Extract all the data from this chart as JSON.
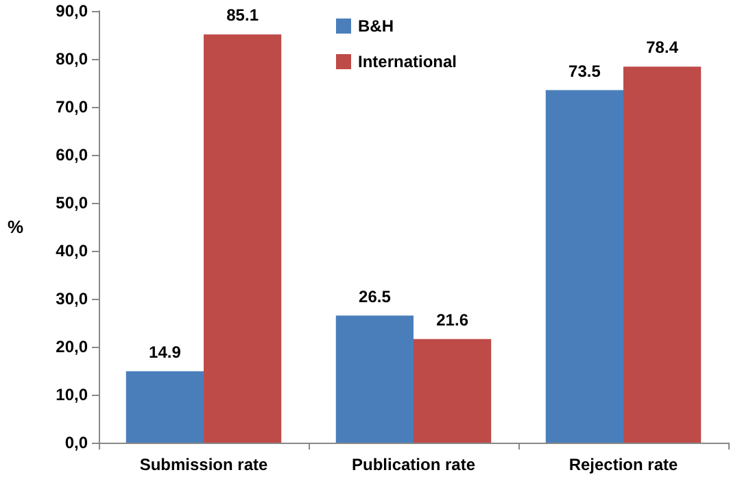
{
  "chart_data": {
    "type": "bar",
    "ylabel": "%",
    "categories": [
      "Submission rate",
      "Publication rate",
      "Rejection rate"
    ],
    "series": [
      {
        "name": "B&H",
        "color": "#4a7ebb",
        "values": [
          14.9,
          26.5,
          73.5
        ]
      },
      {
        "name": "International",
        "color": "#be4b48",
        "values": [
          85.1,
          21.6,
          78.4
        ]
      }
    ],
    "ylim": [
      0,
      90
    ],
    "yticks": [
      {
        "value": 0,
        "label": "0,0"
      },
      {
        "value": 10,
        "label": "10,0"
      },
      {
        "value": 20,
        "label": "20,0"
      },
      {
        "value": 30,
        "label": "30,0"
      },
      {
        "value": 40,
        "label": "40,0"
      },
      {
        "value": 50,
        "label": "50,0"
      },
      {
        "value": 60,
        "label": "60,0"
      },
      {
        "value": 70,
        "label": "70,0"
      },
      {
        "value": 80,
        "label": "80,0"
      },
      {
        "value": 90,
        "label": "90,0"
      }
    ],
    "data_labels": true,
    "grid": false,
    "legend": "top"
  }
}
